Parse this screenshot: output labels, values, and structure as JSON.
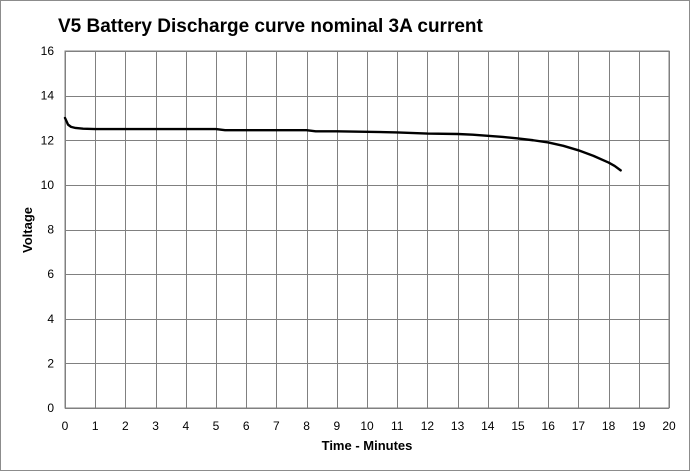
{
  "chart_data": {
    "type": "line",
    "title": "V5 Battery Discharge curve nominal 3A current",
    "xlabel": "Time - Minutes",
    "ylabel": "Voltage",
    "xlim": [
      0,
      20
    ],
    "ylim": [
      0,
      16
    ],
    "xticks": [
      0,
      1,
      2,
      3,
      4,
      5,
      6,
      7,
      8,
      9,
      10,
      11,
      12,
      13,
      14,
      15,
      16,
      17,
      18,
      19,
      20
    ],
    "yticks": [
      0,
      2,
      4,
      6,
      8,
      10,
      12,
      14,
      16
    ],
    "grid": true,
    "legend": "none",
    "colors": {
      "line": "#000000",
      "grid": "#808080",
      "background": "#ffffff"
    },
    "series": [
      {
        "x": [
          0,
          0.05,
          0.1,
          0.2,
          0.35,
          0.6,
          1,
          2,
          3,
          4,
          5,
          5.3,
          6,
          7,
          8,
          8.3,
          9,
          10,
          11,
          12,
          13,
          13.5,
          14,
          14.5,
          15,
          15.5,
          16,
          16.5,
          17,
          17.5,
          18,
          18.2,
          18.4
        ],
        "y": [
          13.0,
          12.85,
          12.7,
          12.6,
          12.55,
          12.52,
          12.5,
          12.5,
          12.5,
          12.5,
          12.5,
          12.45,
          12.45,
          12.45,
          12.45,
          12.4,
          12.4,
          12.38,
          12.35,
          12.3,
          12.28,
          12.25,
          12.2,
          12.15,
          12.08,
          12.0,
          11.9,
          11.75,
          11.55,
          11.3,
          11.0,
          10.85,
          10.65
        ]
      }
    ]
  }
}
